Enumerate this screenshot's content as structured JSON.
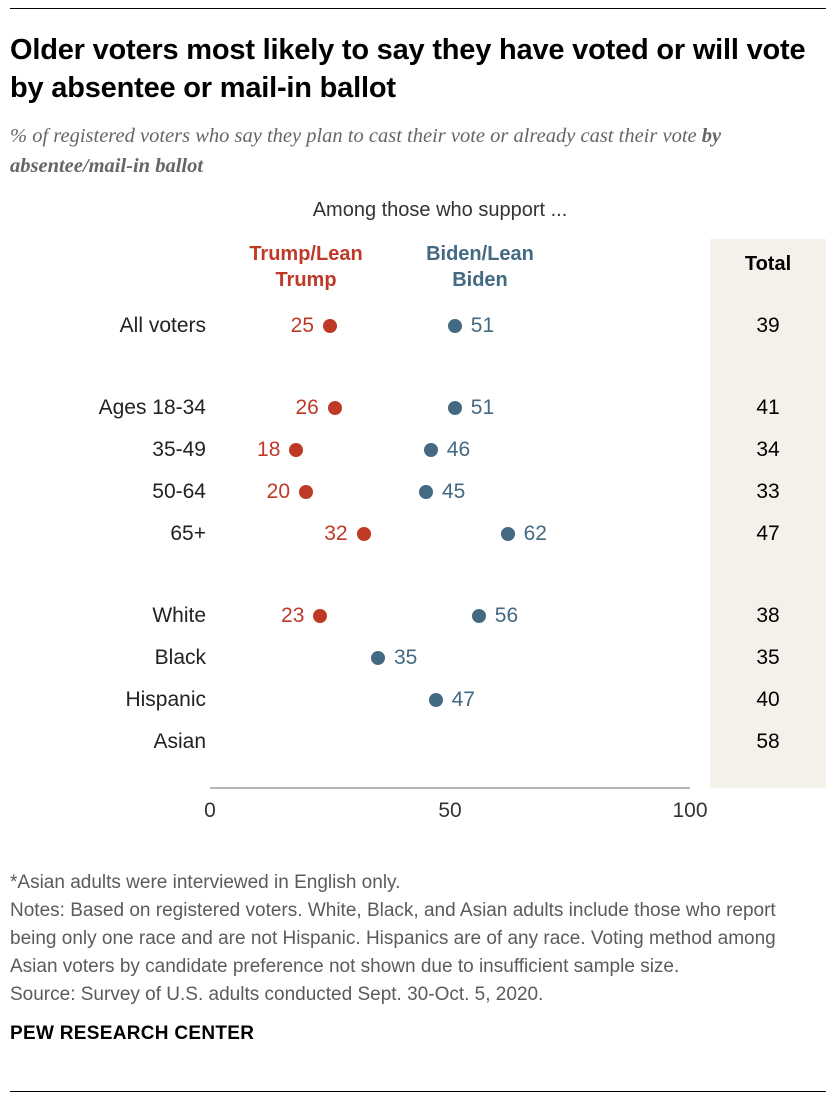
{
  "header": {
    "title": "Older voters most likely to say they have voted or will vote by absentee or mail-in ballot",
    "subtitle_plain": "% of registered voters who say they plan to cast their vote or already cast their vote ",
    "subtitle_bold": "by absentee/mail-in ballot"
  },
  "chart_data": {
    "type": "scatter",
    "title": "Among those who support ...",
    "xlabel": "",
    "ylabel": "",
    "xlim": [
      0,
      100
    ],
    "x_ticks": [
      0,
      50,
      100
    ],
    "grid": false,
    "legend": {
      "trump_label": "Trump/Lean Trump",
      "biden_label": "Biden/Lean Biden",
      "total_label": "Total"
    },
    "colors": {
      "trump": "#bf3927",
      "biden": "#436983",
      "total_bg": "#f3f1e9"
    },
    "rows": [
      {
        "label": "All voters",
        "trump": 25,
        "biden": 51,
        "total": 39,
        "gap_before": false
      },
      {
        "label": "Ages 18-34",
        "trump": 26,
        "biden": 51,
        "total": 41,
        "gap_before": true
      },
      {
        "label": "35-49",
        "trump": 18,
        "biden": 46,
        "total": 34,
        "gap_before": false
      },
      {
        "label": "50-64",
        "trump": 20,
        "biden": 45,
        "total": 33,
        "gap_before": false
      },
      {
        "label": "65+",
        "trump": 32,
        "biden": 62,
        "total": 47,
        "gap_before": false
      },
      {
        "label": "White",
        "trump": 23,
        "biden": 56,
        "total": 38,
        "gap_before": true
      },
      {
        "label": "Black",
        "trump": null,
        "biden": 35,
        "total": 35,
        "gap_before": false
      },
      {
        "label": "Hispanic",
        "trump": null,
        "biden": 47,
        "total": 40,
        "gap_before": false
      },
      {
        "label": "Asian",
        "trump": null,
        "biden": null,
        "total": 58,
        "gap_before": false
      }
    ]
  },
  "footer": {
    "asterisk_note": "*Asian adults were interviewed in English only.",
    "notes": "Notes: Based on registered voters. White, Black, and Asian adults include those who report being only one race and are not Hispanic. Hispanics are of any race. Voting method among Asian voters by candidate preference not shown due to insufficient sample size.",
    "source": "Source: Survey of U.S. adults conducted Sept. 30-Oct. 5, 2020.",
    "org": "PEW RESEARCH CENTER"
  }
}
